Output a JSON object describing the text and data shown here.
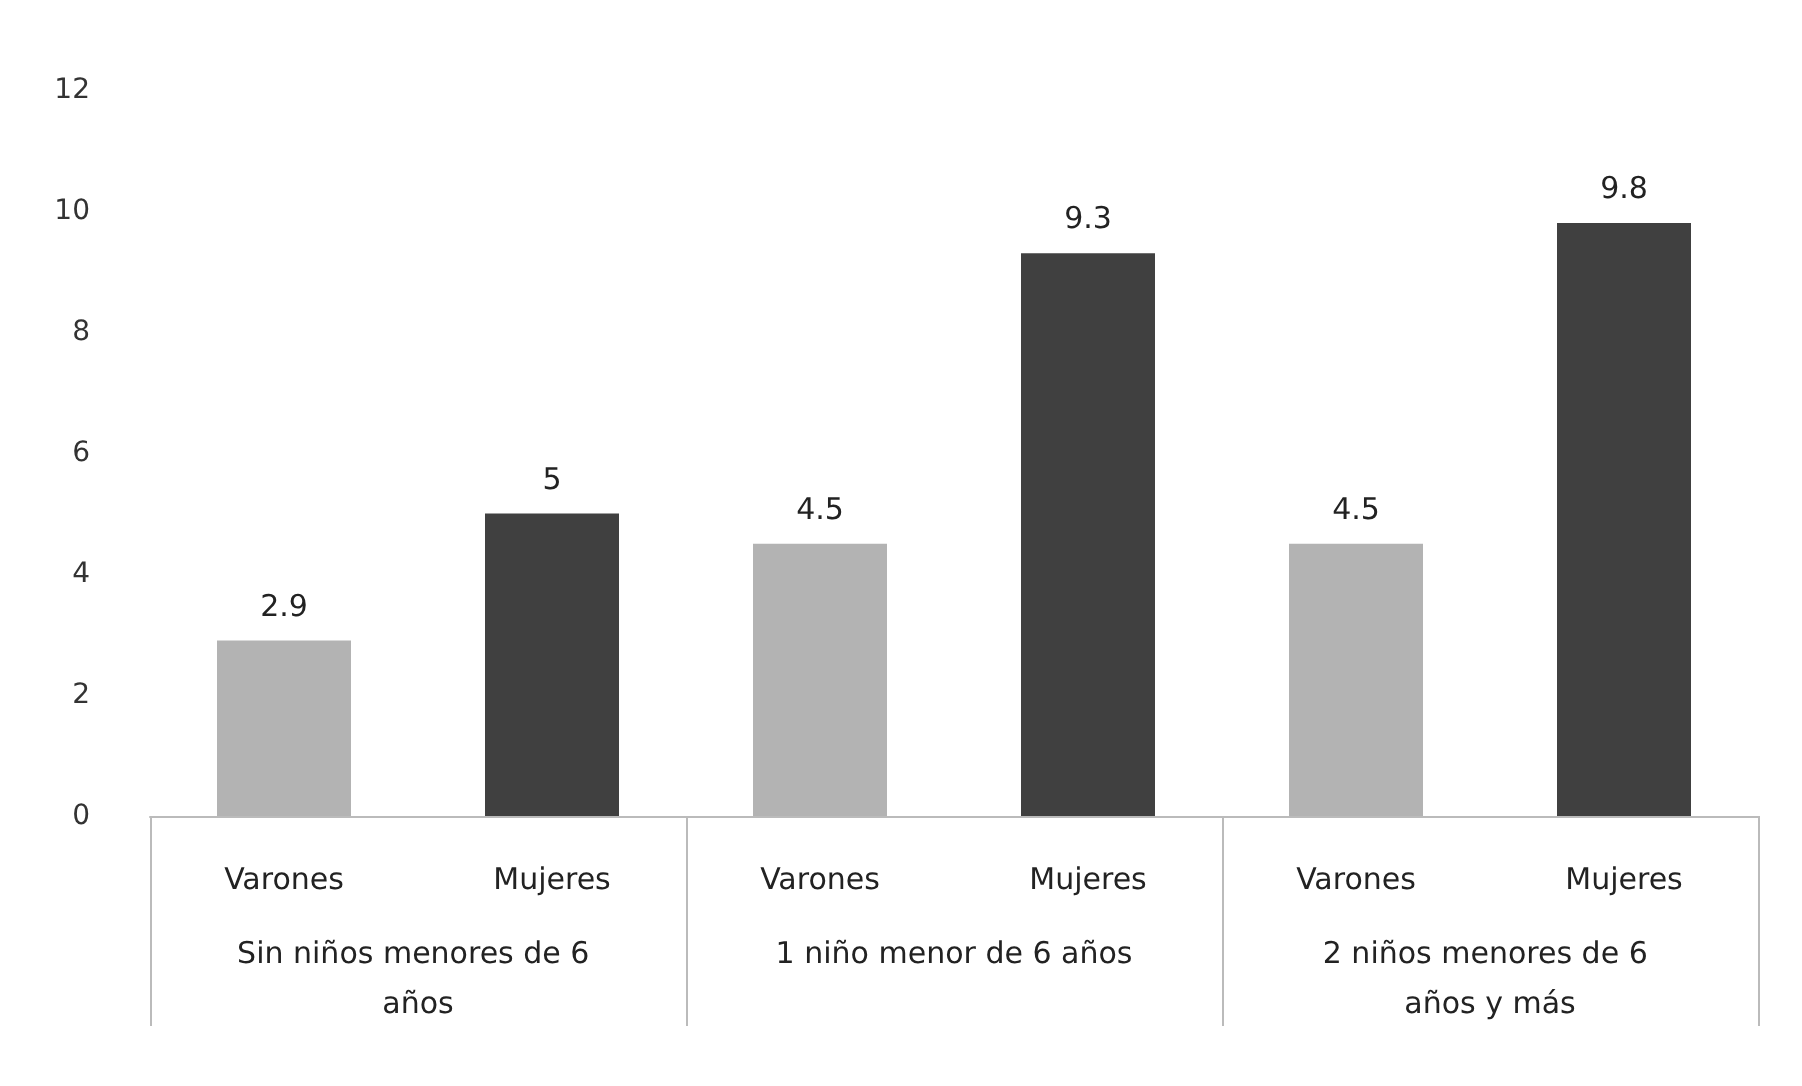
{
  "chart_data": {
    "type": "bar",
    "categories": [
      "Varones",
      "Mujeres",
      "Varones",
      "Mujeres",
      "Varones",
      "Mujeres"
    ],
    "values": [
      2.9,
      5,
      4.5,
      9.3,
      4.5,
      9.8
    ],
    "colors": [
      "#b3b3b3",
      "#404040",
      "#b3b3b3",
      "#404040",
      "#b3b3b3",
      "#404040"
    ],
    "annotations": [
      "Sin niños menores de 6 años",
      "1 niño menor de 6 años",
      "2 niños menores de 6 años y más"
    ],
    "ylim": [
      0,
      12
    ],
    "yticks": [
      0,
      2,
      4,
      6,
      8,
      10,
      12
    ],
    "data_labels": true,
    "grid": false
  }
}
